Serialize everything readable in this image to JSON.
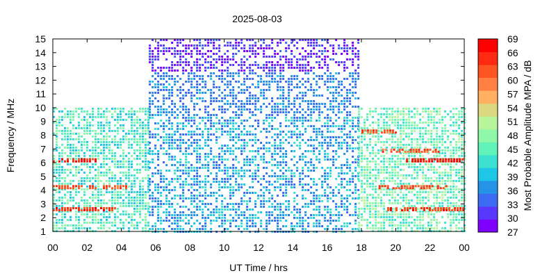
{
  "chart_data": {
    "type": "heatmap",
    "title": "2025-08-03",
    "xlabel": "UT Time / hrs",
    "ylabel": "Frequency / MHz",
    "colorbar_label": "Most Probable Amplitude MPA / dB",
    "xlim": [
      0,
      24
    ],
    "ylim": [
      1,
      15
    ],
    "x_tick_labels": [
      "00",
      "02",
      "04",
      "06",
      "08",
      "10",
      "12",
      "14",
      "16",
      "18",
      "20",
      "22",
      "00"
    ],
    "y_tick_labels": [
      "1",
      "2",
      "3",
      "4",
      "5",
      "6",
      "7",
      "8",
      "9",
      "10",
      "11",
      "12",
      "13",
      "14",
      "15"
    ],
    "colorbar": {
      "range": [
        27,
        69
      ],
      "tick_labels": [
        "27",
        "30",
        "33",
        "36",
        "39",
        "42",
        "45",
        "48",
        "51",
        "54",
        "57",
        "60",
        "63",
        "66",
        "69"
      ],
      "colors": [
        "#7f00ff",
        "#5a37ff",
        "#3a6bf0",
        "#2593e8",
        "#1ec7e8",
        "#3ae0d0",
        "#60f2b8",
        "#8ef7a8",
        "#b8f59a",
        "#dcd880",
        "#ffb060",
        "#ff8040",
        "#ff5522",
        "#ff2a12",
        "#ff0000"
      ]
    },
    "grid": false,
    "legend": "colorbar-right",
    "coverage": [
      {
        "x_range": [
          0,
          5.6
        ],
        "y_range": [
          1,
          10
        ],
        "typical_value": 44,
        "note_bands_MHz": [
          2.6,
          4.3,
          6.2
        ]
      },
      {
        "x_range": [
          5.6,
          17.8
        ],
        "y_range": [
          1,
          15
        ],
        "typical_value": 38,
        "high_freq_value": 30
      },
      {
        "x_range": [
          17.8,
          24
        ],
        "y_range": [
          1,
          10
        ],
        "typical_value": 46,
        "note_bands_MHz": [
          2.6,
          4.0,
          6.3,
          8.3
        ]
      }
    ],
    "bands": [
      {
        "y": 2.65,
        "value": 64,
        "x_ranges": [
          [
            0,
            3.6
          ],
          [
            19.5,
            24
          ]
        ]
      },
      {
        "y": 4.25,
        "value": 63,
        "x_ranges": [
          [
            0,
            4.4
          ],
          [
            19.0,
            23.0
          ]
        ]
      },
      {
        "y": 6.2,
        "value": 66,
        "x_ranges": [
          [
            0,
            2.5
          ],
          [
            20.6,
            24
          ]
        ]
      },
      {
        "y": 6.9,
        "value": 63,
        "x_ranges": [
          [
            19.2,
            22.5
          ]
        ]
      },
      {
        "y": 8.3,
        "value": 62,
        "x_ranges": [
          [
            18.0,
            20.0
          ]
        ]
      }
    ]
  }
}
